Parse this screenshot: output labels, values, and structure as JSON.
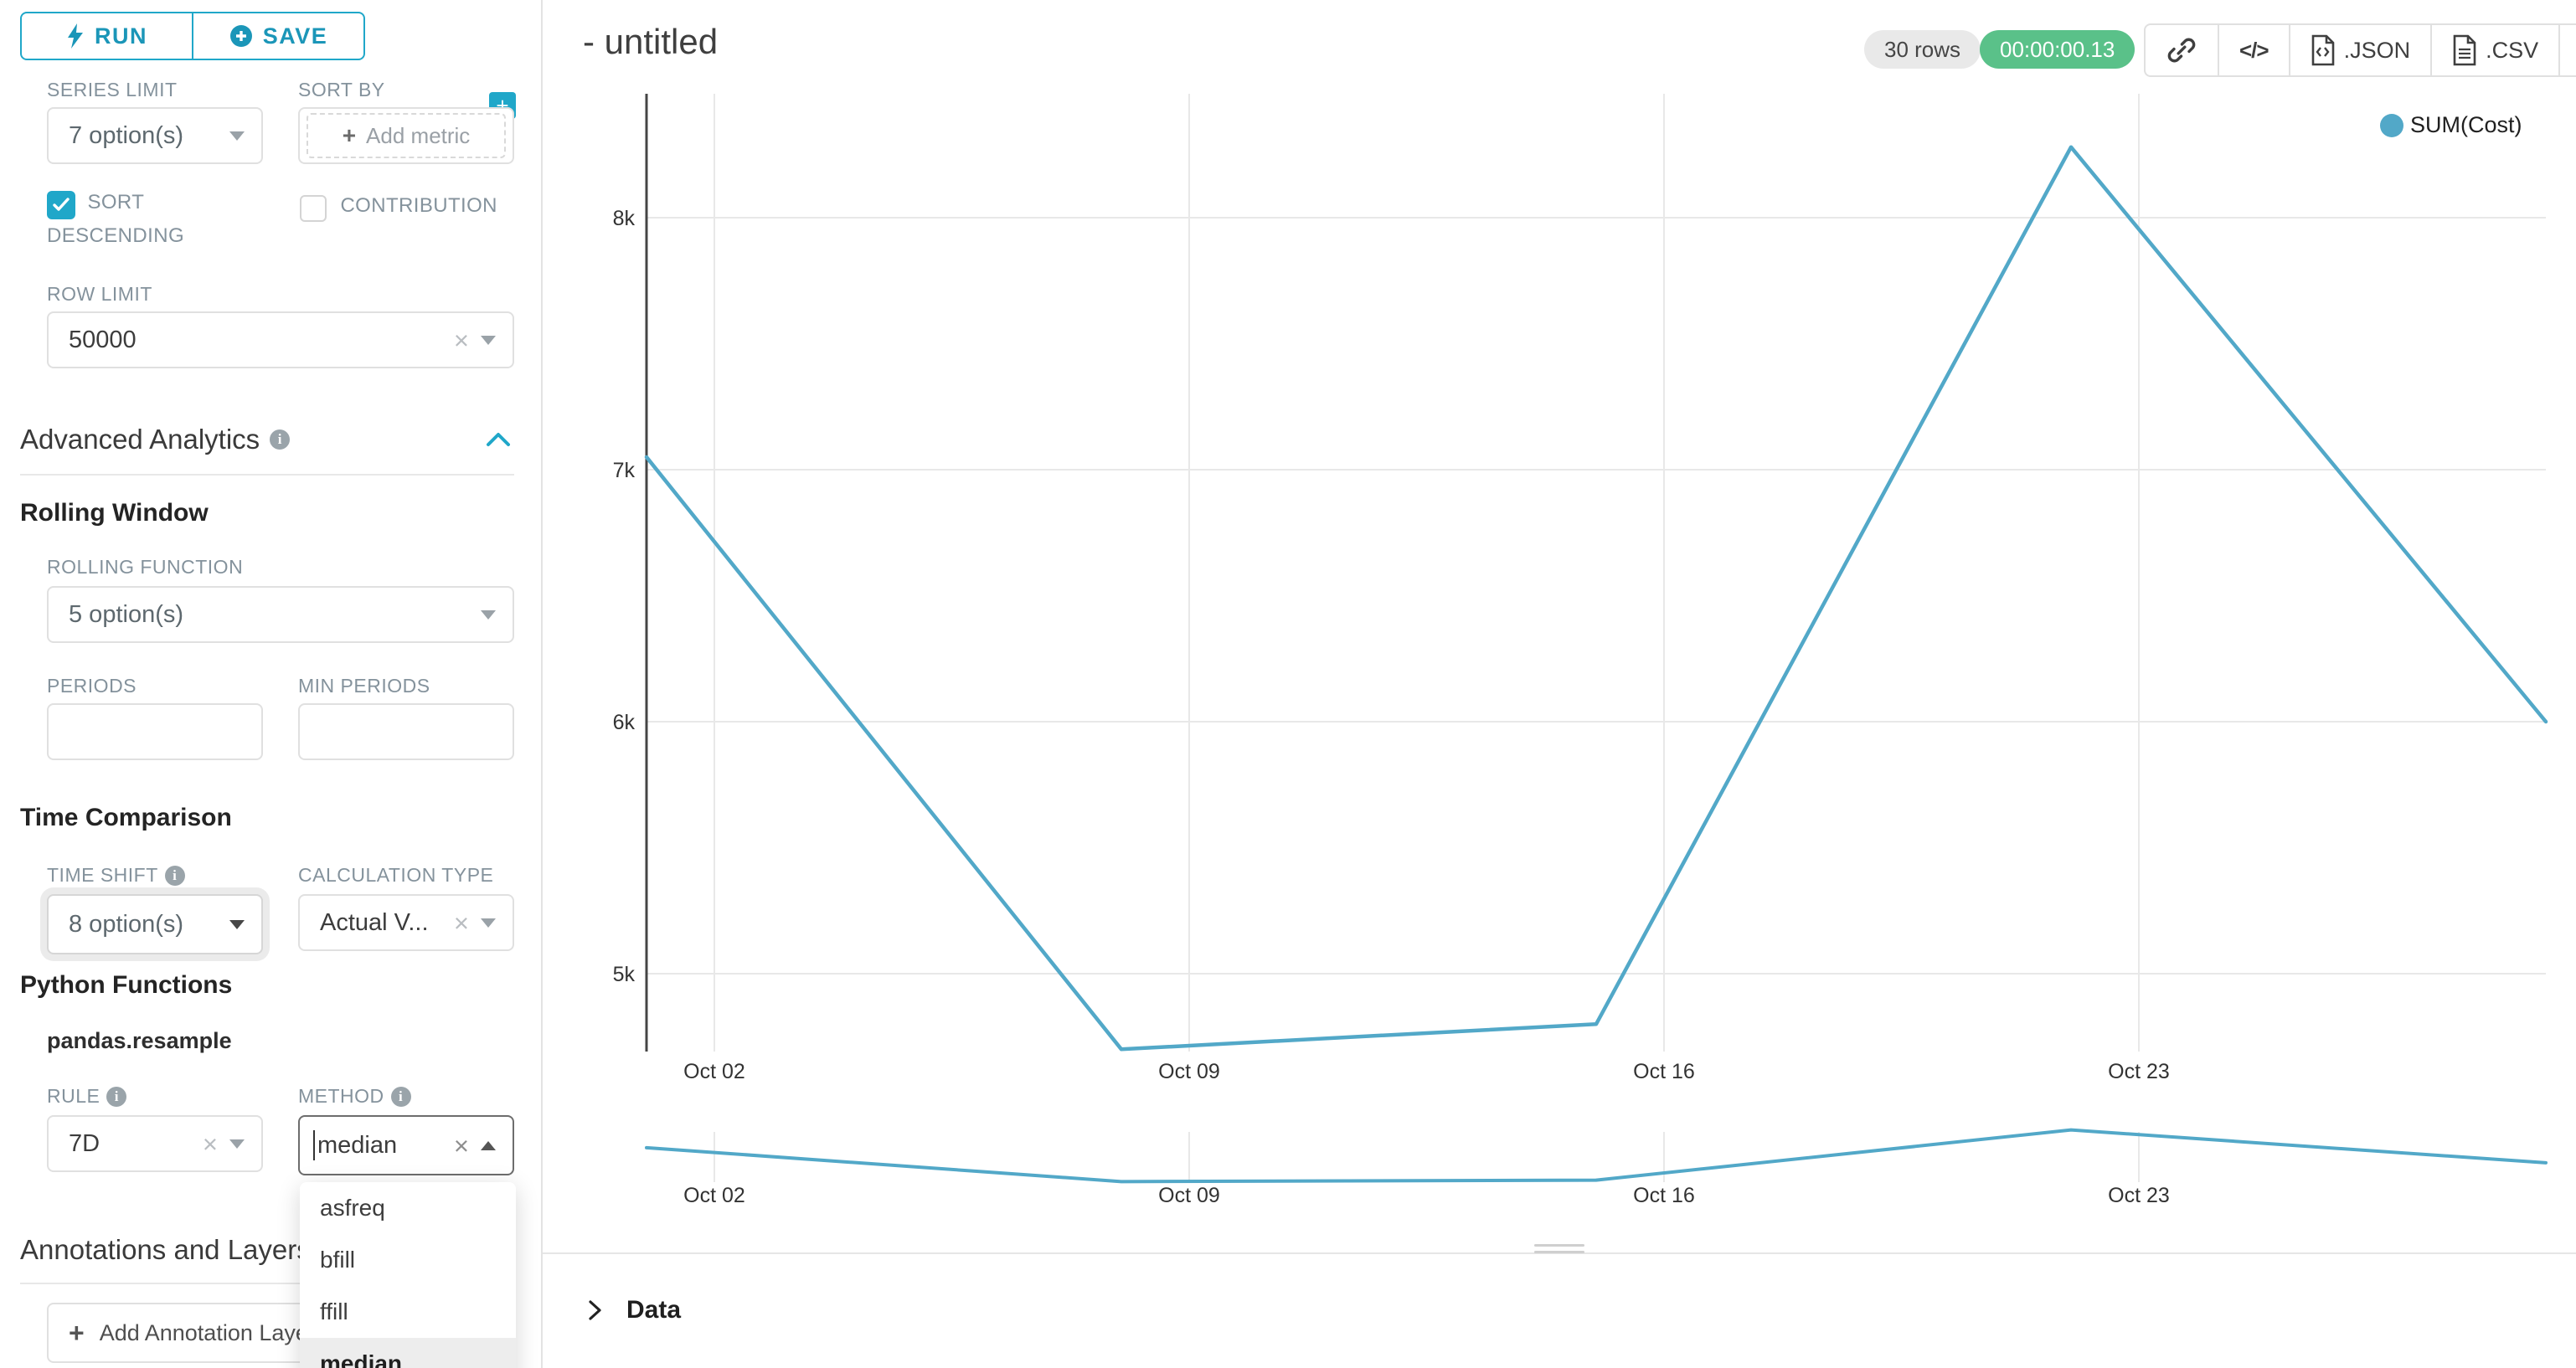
{
  "colors": {
    "accent": "#20A7C9",
    "success": "#5AC189",
    "line": "#52A8C8",
    "gridline": "#e8e8e8",
    "selected_option_bg": "#ededed"
  },
  "sidebar": {
    "run_label": "RUN",
    "save_label": "SAVE",
    "series_limit": {
      "label": "SERIES LIMIT",
      "value": "7 option(s)"
    },
    "sort_by": {
      "label": "SORT BY",
      "add_metric_label": "Add metric",
      "plus_button": "+"
    },
    "sort_descending": {
      "label": "SORT DESCENDING",
      "checked": true
    },
    "contribution": {
      "label": "CONTRIBUTION",
      "checked": false
    },
    "row_limit": {
      "label": "ROW LIMIT",
      "value": "50000"
    },
    "advanced_analytics": {
      "title": "Advanced Analytics"
    },
    "rolling_window": {
      "title": "Rolling Window",
      "rolling_function": {
        "label": "ROLLING FUNCTION",
        "value": "5 option(s)"
      },
      "periods": {
        "label": "PERIODS",
        "value": ""
      },
      "min_periods": {
        "label": "MIN PERIODS",
        "value": ""
      }
    },
    "time_comparison": {
      "title": "Time Comparison",
      "time_shift": {
        "label": "TIME SHIFT",
        "value": "8 option(s)"
      },
      "calculation_type": {
        "label": "CALCULATION TYPE",
        "value": "Actual V..."
      }
    },
    "python_functions": {
      "title": "Python Functions",
      "subtitle": "pandas.resample",
      "rule": {
        "label": "RULE",
        "value": "7D"
      },
      "method": {
        "label": "METHOD",
        "value": "median",
        "options": [
          "asfreq",
          "bfill",
          "ffill",
          "median"
        ],
        "selected": "median"
      }
    },
    "annotations": {
      "title": "Annotations and Layers",
      "add_button_label": "Add Annotation Layer"
    }
  },
  "header": {
    "title": "- untitled",
    "rows_badge": "30 rows",
    "timer_badge": "00:00:00.13",
    "json_label": ".JSON",
    "csv_label": ".CSV"
  },
  "legend": {
    "label": "SUM(Cost)"
  },
  "chart_data": {
    "type": "line",
    "title": "- untitled",
    "series": [
      {
        "name": "SUM(Cost)",
        "x": [
          "Oct 01",
          "Oct 08",
          "Oct 15",
          "Oct 22",
          "Oct 29"
        ],
        "x_days": [
          1,
          8,
          15,
          22,
          29
        ],
        "values": [
          7050,
          4700,
          4800,
          8280,
          6000
        ]
      }
    ],
    "x_ticks": [
      "Oct 02",
      "Oct 09",
      "Oct 16",
      "Oct 23"
    ],
    "x_tick_days": [
      2,
      9,
      16,
      23
    ],
    "y_ticks": [
      {
        "label": "8k",
        "value": 8000
      },
      {
        "label": "7k",
        "value": 7000
      },
      {
        "label": "6k",
        "value": 6000
      },
      {
        "label": "5k",
        "value": 5000
      }
    ],
    "ylim": [
      4690,
      8500
    ],
    "grid": true,
    "legend_position": "top-right",
    "line_color": "#52A8C8",
    "has_mini_preview": true
  },
  "data_panel": {
    "title": "Data"
  },
  "icons": {
    "run": "lightning-bolt-icon",
    "save": "plus-circle-icon",
    "info": "info-circle-icon",
    "collapse": "chevron-up-icon",
    "share": "link-icon",
    "embed": "code-icon",
    "export_json": "file-code-icon",
    "export_csv": "file-lines-icon",
    "menu": "hamburger-menu-icon",
    "data_expand": "chevron-right-icon"
  }
}
